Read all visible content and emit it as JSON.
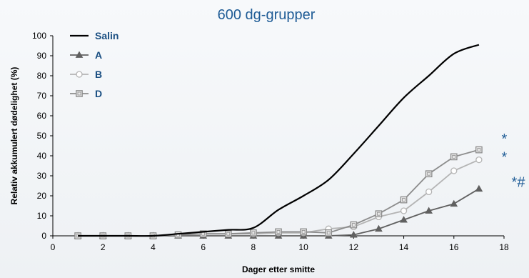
{
  "chart_data": {
    "type": "line",
    "title": "600 dg-grupper",
    "xlabel": "Dager etter smitte",
    "ylabel": "Relativ akkumulert dødelighet (%)",
    "xlim": [
      0,
      18
    ],
    "ylim": [
      0,
      100
    ],
    "xticks": [
      0,
      2,
      4,
      6,
      8,
      10,
      12,
      14,
      16,
      18
    ],
    "yticks": [
      0,
      10,
      20,
      30,
      40,
      50,
      60,
      70,
      80,
      90,
      100
    ],
    "grid": false,
    "legend_position": "top-left",
    "series": [
      {
        "name": "Salin",
        "color": "#000000",
        "marker": "none",
        "x": [
          1,
          2,
          3,
          4,
          5,
          6,
          7,
          8,
          9,
          10,
          11,
          12,
          13,
          14,
          15,
          16,
          17
        ],
        "y": [
          0,
          0,
          0,
          0,
          1,
          2,
          3,
          4,
          13,
          20,
          28,
          41,
          55,
          69,
          80,
          91,
          95.5
        ]
      },
      {
        "name": "A",
        "color": "#606060",
        "marker": "triangle",
        "x": [
          1,
          2,
          3,
          4,
          5,
          6,
          7,
          8,
          9,
          10,
          11,
          12,
          13,
          14,
          15,
          16,
          17
        ],
        "y": [
          0,
          0,
          0,
          0,
          0,
          0,
          0,
          0,
          0,
          0,
          0,
          0.5,
          3.5,
          8,
          12.5,
          16,
          23.5
        ]
      },
      {
        "name": "B",
        "color": "#b4b4b4",
        "marker": "circle",
        "x": [
          1,
          2,
          3,
          4,
          5,
          6,
          7,
          8,
          9,
          10,
          11,
          12,
          13,
          14,
          15,
          16,
          17
        ],
        "y": [
          0,
          0,
          0,
          0,
          0.5,
          1,
          1,
          1,
          1.5,
          1.5,
          3.5,
          4.5,
          9.5,
          12.5,
          22,
          32.5,
          38
        ]
      },
      {
        "name": "D",
        "color": "#8c8c8c",
        "marker": "square",
        "x": [
          1,
          2,
          3,
          4,
          5,
          6,
          7,
          8,
          9,
          10,
          11,
          12,
          13,
          14,
          15,
          16,
          17
        ],
        "y": [
          0,
          0,
          0,
          0,
          0.5,
          1,
          1,
          1.5,
          2,
          2,
          1.5,
          5.5,
          11,
          18,
          31,
          39.5,
          43
        ]
      }
    ],
    "annotations": [
      {
        "text": "*",
        "x": 17.9,
        "y": 46
      },
      {
        "text": "*",
        "x": 17.9,
        "y": 37
      },
      {
        "text": "*#",
        "x": 18.3,
        "y": 24.5
      }
    ]
  }
}
